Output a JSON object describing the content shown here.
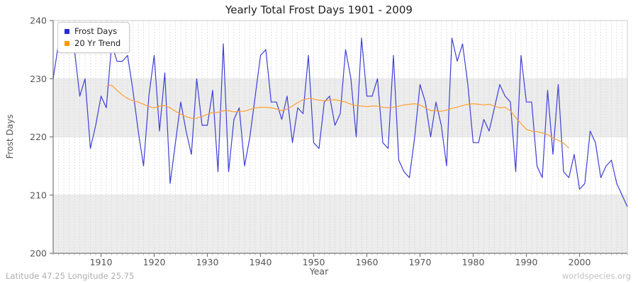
{
  "title": "Yearly Total Frost Days 1901 - 2009",
  "footer_left": "Latitude 47.25 Longitude 25.75",
  "footer_right": "worldspecies.org",
  "colors": {
    "frost_days_line": "#3e3ed8",
    "trend_line": "#ffa033",
    "band_gray": "#ececec",
    "grid_dash": "#d9d9d9",
    "grid_solid": "#e3e3e3",
    "axis": "#777777",
    "tick_label": "#555555"
  },
  "chart_data": {
    "type": "line",
    "title": "Yearly Total Frost Days 1901 - 2009",
    "xlabel": "Year",
    "ylabel": "Frost Days",
    "xlim": [
      1901,
      2009
    ],
    "ylim": [
      200,
      240
    ],
    "x_ticks": [
      1910,
      1920,
      1930,
      1940,
      1950,
      1960,
      1970,
      1980,
      1990,
      2000
    ],
    "y_ticks": [
      200,
      210,
      220,
      230,
      240
    ],
    "grid": "vertical dashed line per year; alternating horizontal gray bands 200-210 and 220-230",
    "legend": {
      "position": "top-left",
      "entries": [
        {
          "label": "Frost Days",
          "color": "#2b2bd5"
        },
        {
          "label": "20 Yr Trend",
          "color": "#ff9900"
        }
      ]
    },
    "series": [
      {
        "id": "frost_days",
        "name": "Frost Days",
        "color": "#3e3ed8",
        "x_start": 1901,
        "values": [
          230,
          236,
          235,
          235,
          235,
          227,
          230,
          218,
          222,
          227,
          225,
          236,
          233,
          233,
          234,
          228,
          221,
          215,
          227,
          234,
          221,
          231,
          212,
          219,
          226,
          221,
          217,
          230,
          222,
          222,
          228,
          214,
          236,
          214,
          223,
          225,
          215,
          220,
          227,
          234,
          235,
          226,
          226,
          223,
          227,
          219,
          225,
          224,
          234,
          219,
          218,
          226,
          227,
          222,
          224,
          235,
          230,
          220,
          237,
          227,
          227,
          230,
          219,
          218,
          234,
          216,
          214,
          213,
          220,
          229,
          226,
          220,
          226,
          222,
          215,
          237,
          233,
          236,
          229,
          219,
          219,
          223,
          221,
          225,
          229,
          227,
          226,
          214,
          234,
          226,
          226,
          215,
          213,
          228,
          217,
          229,
          214,
          213,
          217,
          211,
          212,
          221,
          219,
          213,
          215,
          216,
          212,
          210,
          208
        ]
      },
      {
        "id": "trend",
        "name": "20 Yr Trend",
        "color": "#ffa033",
        "x_start": 1911,
        "values": [
          228.7,
          228.9,
          228.0,
          227.2,
          226.6,
          226.2,
          226.0,
          225.6,
          225.2,
          225.0,
          225.3,
          225.4,
          225.0,
          224.4,
          223.9,
          223.5,
          223.2,
          223.2,
          223.5,
          223.9,
          224.2,
          224.2,
          224.5,
          224.5,
          224.3,
          224.4,
          224.4,
          224.7,
          225.0,
          225.1,
          225.1,
          225.0,
          224.8,
          224.5,
          224.8,
          225.3,
          225.9,
          226.4,
          226.6,
          226.5,
          226.3,
          226.2,
          226.3,
          226.4,
          226.2,
          226.0,
          225.6,
          225.4,
          225.3,
          225.2,
          225.3,
          225.3,
          225.1,
          225.0,
          225.1,
          225.3,
          225.5,
          225.6,
          225.7,
          225.5,
          225.0,
          224.5,
          224.5,
          224.4,
          224.6,
          224.9,
          225.1,
          225.4,
          225.6,
          225.7,
          225.6,
          225.5,
          225.6,
          225.3,
          225.0,
          225.1,
          224.5,
          223.3,
          222.3,
          221.3,
          221.0,
          220.9,
          220.7,
          220.4,
          219.8,
          219.4,
          218.9,
          218.1
        ]
      }
    ]
  }
}
